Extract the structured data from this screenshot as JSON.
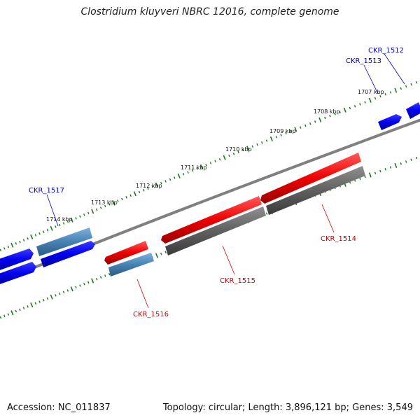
{
  "header": {
    "title": "Clostridium kluyveri NBRC 12016, complete genome"
  },
  "footer": {
    "accession": "Accession: NC_011837",
    "summary": "Topology: circular; Length: 3,896,121 bp; Genes: 3,549"
  },
  "ruler": {
    "labels": [
      "1707 kbp",
      "1708 kbp",
      "1709 kbp",
      "1710 kbp",
      "1711 kbp",
      "1712 kbp",
      "1713 kbp",
      "1714 kbp"
    ],
    "unit": "kbp"
  },
  "gene_labels": [
    {
      "text": "CKR_1512",
      "color": "#0000c8"
    },
    {
      "text": "CKR_1513",
      "color": "#0000c8"
    },
    {
      "text": "CKR_1517",
      "color": "#0000c8"
    },
    {
      "text": "CKR_1514",
      "color": "#d00000"
    },
    {
      "text": "CKR_1515",
      "color": "#d00000"
    },
    {
      "text": "CKR_1516",
      "color": "#d00000"
    }
  ],
  "colors": {
    "forward_gene": "#0000ee",
    "forward_highlight": "#4682b4",
    "reverse_gene": "#ee0000",
    "reverse_homolog": "#606060",
    "reverse_highlight": "#4682b4",
    "backbone": "#808080",
    "tick": "#1a7a1a"
  }
}
